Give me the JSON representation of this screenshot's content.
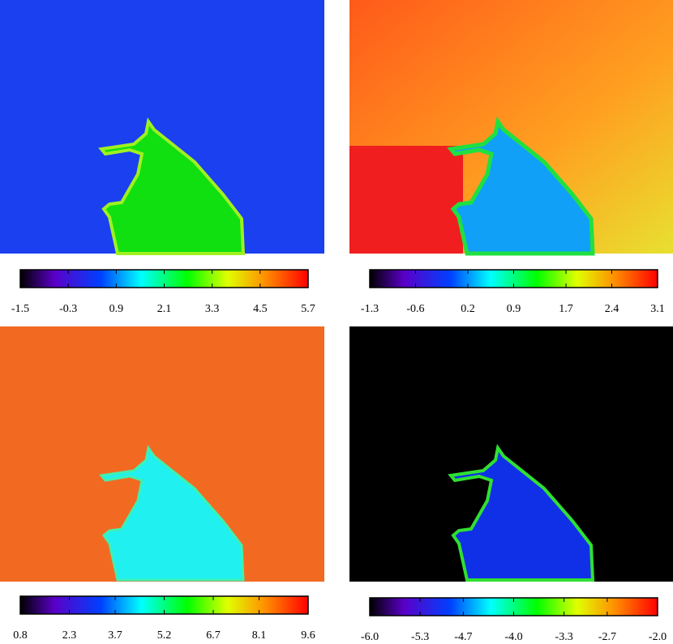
{
  "chart_data": [
    {
      "type": "heatmap",
      "xlim": [
        -1.5,
        5.7
      ],
      "xticks": [
        -1.5,
        -0.3,
        0.9,
        2.1,
        3.3,
        4.5,
        5.7
      ]
    },
    {
      "type": "heatmap",
      "xlim": [
        -1.3,
        3.1
      ],
      "xticks": [
        -1.3,
        -0.6,
        0.2,
        0.9,
        1.7,
        2.4,
        3.1
      ]
    },
    {
      "type": "heatmap",
      "xlim": [
        0.8,
        9.6
      ],
      "xticks": [
        0.8,
        2.3,
        3.7,
        5.2,
        6.7,
        8.1,
        9.6
      ]
    },
    {
      "type": "heatmap",
      "xlim": [
        -6,
        -2
      ],
      "xticks": [
        {
          "value": -6,
          "label": "-6.0"
        },
        -5.3,
        -4.7,
        {
          "value": -4,
          "label": "-4.0"
        },
        -3.3,
        -2.7,
        {
          "value": -2,
          "label": "-2.0"
        }
      ]
    }
  ]
}
